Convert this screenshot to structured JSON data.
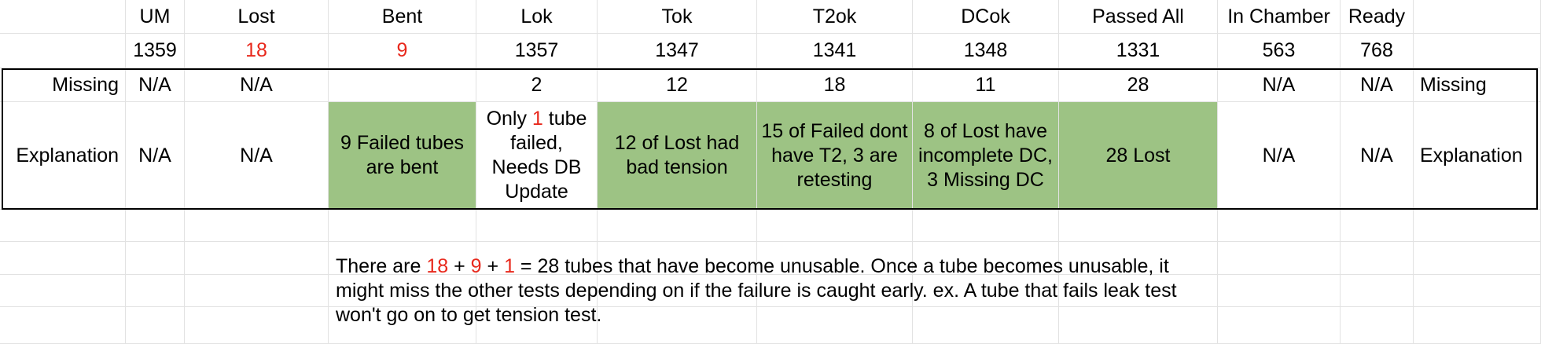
{
  "columns": [
    "",
    "UM",
    "Lost",
    "Bent",
    "Lok",
    "Tok",
    "T2ok",
    "DCok",
    "Passed All",
    "In Chamber",
    "Ready",
    ""
  ],
  "counts": [
    "",
    "1359",
    "18",
    "9",
    "1357",
    "1347",
    "1341",
    "1348",
    "1331",
    "563",
    "768",
    ""
  ],
  "missing_row": [
    "Missing",
    "N/A",
    "N/A",
    "",
    "2",
    "12",
    "18",
    "11",
    "28",
    "N/A",
    "N/A",
    "Missing"
  ],
  "explanation_row": [
    "Explanation",
    "N/A",
    "N/A",
    "9 Failed tubes are bent",
    "",
    "12 of Lost had bad tension",
    "15 of Failed dont have T2, 3 are retesting",
    "8 of Lost have incomplete DC, 3 Missing DC",
    "28 Lost",
    "N/A",
    "N/A",
    "Explanation"
  ],
  "lok_explanation": {
    "before": "Only ",
    "highlight": "1",
    "after": " tube failed, Needs DB Update"
  },
  "note": {
    "p1": "There are ",
    "n1": "18",
    "p2": " + ",
    "n2": "9",
    "p3": " + ",
    "n3": "1",
    "p4": " = 28 tubes that have become unusable. Once a tube becomes unusable, it might miss the other tests depending on if the failure is caught early. ex. A tube that fails leak test won't go on to get tension test."
  },
  "colors": {
    "highlight": "#e8281c",
    "green_fill": "#9dc384",
    "grid": "#e2e2e2"
  }
}
